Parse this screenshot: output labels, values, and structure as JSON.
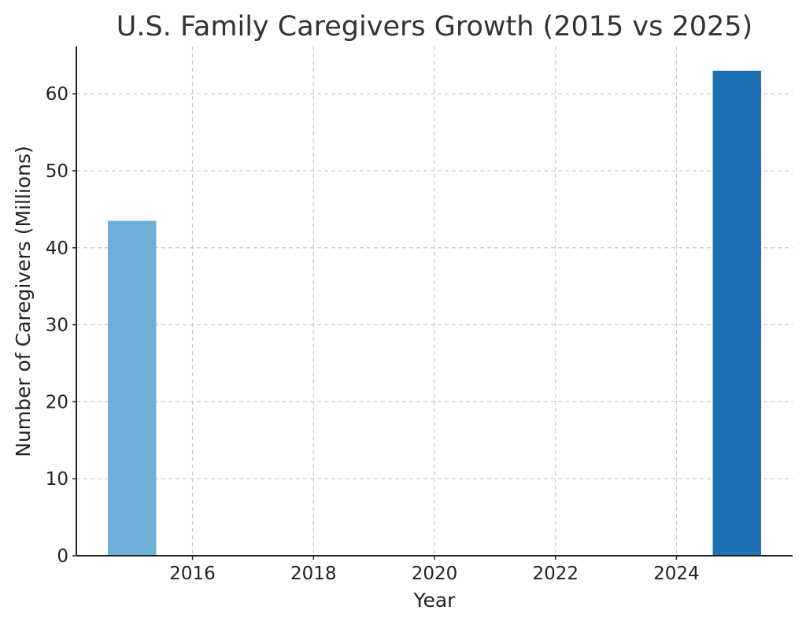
{
  "chart_data": {
    "type": "bar",
    "title": "U.S. Family Caregivers Growth (2015 vs 2025)",
    "xlabel": "Year",
    "ylabel": "Number of Caregivers (Millions)",
    "x": [
      2015,
      2025
    ],
    "values": [
      43.5,
      63.0
    ],
    "bar_colors": [
      "#6baed6",
      "#2171b5"
    ],
    "bar_width_years": 0.8,
    "xlim": [
      2014.08,
      2025.92
    ],
    "ylim": [
      0,
      66.15
    ],
    "xticks": [
      2016,
      2018,
      2020,
      2022,
      2024
    ],
    "xtick_labels": [
      "2016",
      "2018",
      "2020",
      "2022",
      "2024"
    ],
    "yticks": [
      0,
      10,
      20,
      30,
      40,
      50,
      60
    ],
    "ytick_labels": [
      "0",
      "10",
      "20",
      "30",
      "40",
      "50",
      "60"
    ],
    "grid": true,
    "grid_style": "dashed",
    "legend": "none"
  }
}
